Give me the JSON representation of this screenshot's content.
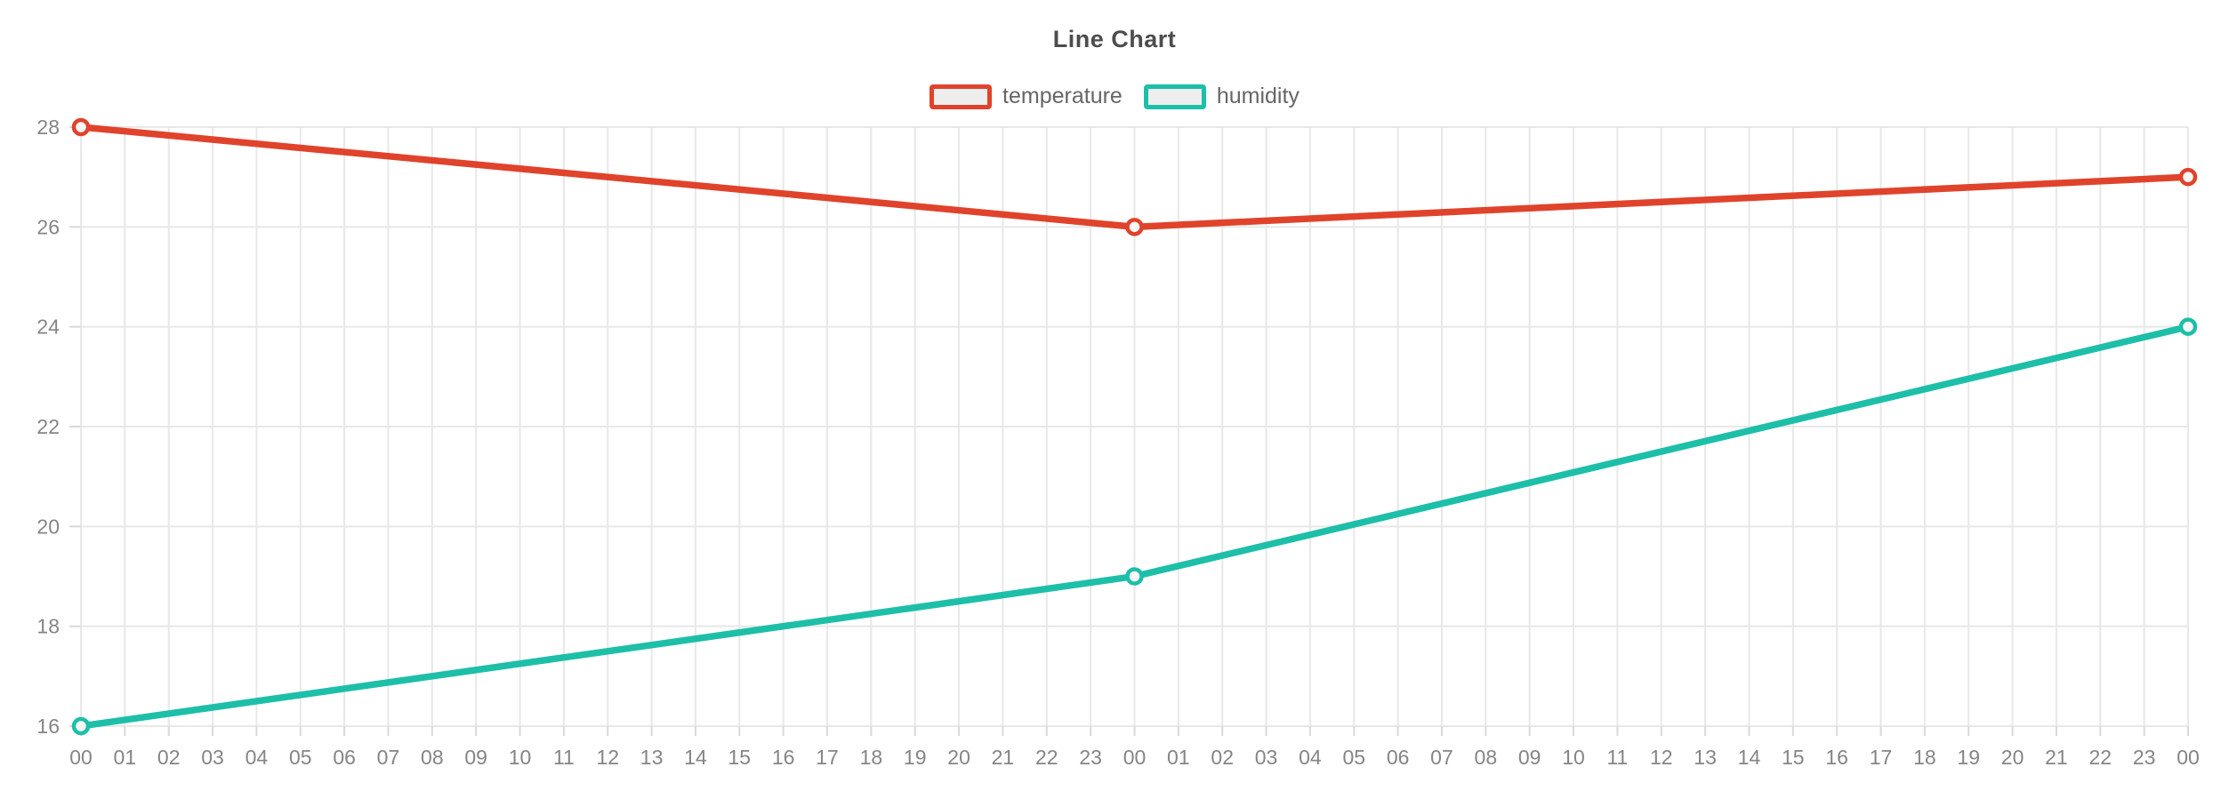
{
  "header": {
    "title": "Line Chart"
  },
  "chart_data": {
    "type": "line",
    "title": "Line Chart",
    "categories": [
      "00",
      "01",
      "02",
      "03",
      "04",
      "05",
      "06",
      "07",
      "08",
      "09",
      "10",
      "11",
      "12",
      "13",
      "14",
      "15",
      "16",
      "17",
      "18",
      "19",
      "20",
      "21",
      "22",
      "23",
      "00",
      "01",
      "02",
      "03",
      "04",
      "05",
      "06",
      "07",
      "08",
      "09",
      "10",
      "11",
      "12",
      "13",
      "14",
      "15",
      "16",
      "17",
      "18",
      "19",
      "20",
      "21",
      "22",
      "23",
      "00"
    ],
    "series": [
      {
        "name": "temperature",
        "color": "#e0432b",
        "points": [
          {
            "i": 0,
            "v": 28
          },
          {
            "i": 24,
            "v": 26
          },
          {
            "i": 48,
            "v": 27
          }
        ]
      },
      {
        "name": "humidity",
        "color": "#1dbfa8",
        "points": [
          {
            "i": 0,
            "v": 16
          },
          {
            "i": 24,
            "v": 19
          },
          {
            "i": 48,
            "v": 24
          }
        ]
      }
    ],
    "xlabel": "",
    "ylabel": "",
    "ylim": [
      16,
      28
    ],
    "yticks": [
      16,
      18,
      20,
      22,
      24,
      26,
      28
    ],
    "grid": true,
    "legend_position": "top",
    "colors": {
      "grid": "#e8e8e8",
      "tick": "#d9d9d9",
      "axis_label": "#858585",
      "title": "#4d4d4d",
      "legend_label": "#666666",
      "legend_fill": "#eeeeee",
      "marker_fill": "#f7f7f7"
    }
  }
}
